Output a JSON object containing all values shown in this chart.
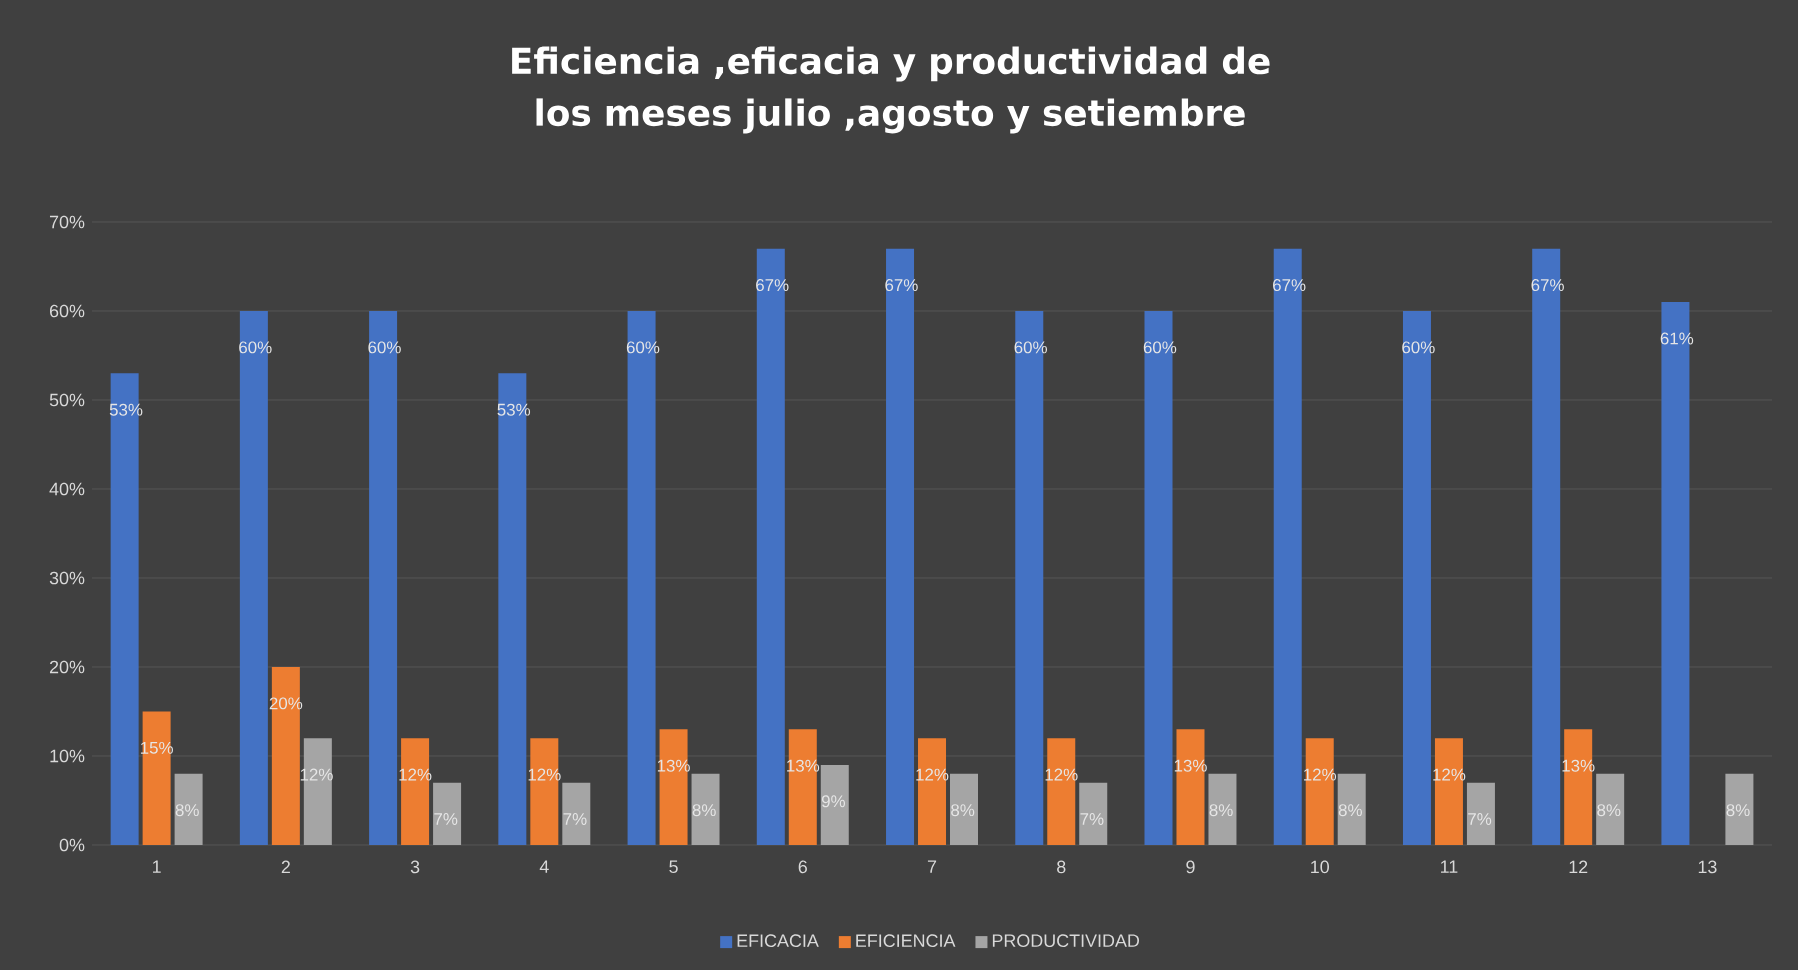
{
  "chart_data": {
    "type": "bar",
    "title": "Eficiencia ,eficacia y productividad de los meses julio ,agosto y setiembre",
    "categories": [
      "1",
      "2",
      "3",
      "4",
      "5",
      "6",
      "7",
      "8",
      "9",
      "10",
      "11",
      "12",
      "13"
    ],
    "series": [
      {
        "name": "EFICACIA",
        "color": "#4472c4",
        "values": [
          53,
          60,
          60,
          53,
          60,
          67,
          67,
          60,
          60,
          67,
          60,
          67,
          61
        ],
        "value_labels": [
          "53%",
          "60%",
          "60%",
          "53%",
          "60%",
          "67%",
          "67%",
          "60%",
          "60%",
          "67%",
          "60%",
          "67%",
          "61%"
        ]
      },
      {
        "name": "EFICIENCIA",
        "color": "#ed7d31",
        "values": [
          15,
          20,
          12,
          12,
          13,
          13,
          12,
          12,
          13,
          12,
          12,
          13,
          null
        ],
        "value_labels": [
          "15%",
          "20%",
          "12%",
          "12%",
          "13%",
          "13%",
          "12%",
          "12%",
          "13%",
          "12%",
          "12%",
          "13%",
          null
        ]
      },
      {
        "name": "PRODUCTIVIDAD",
        "color": "#a5a5a5",
        "values": [
          8,
          12,
          7,
          7,
          8,
          9,
          8,
          7,
          8,
          8,
          7,
          8,
          8
        ],
        "value_labels": [
          "8%",
          "12%",
          "7%",
          "7%",
          "8%",
          "9%",
          "8%",
          "7%",
          "8%",
          "8%",
          "7%",
          "8%",
          "8%"
        ]
      }
    ],
    "ylim": [
      0,
      70
    ],
    "yticks": [
      {
        "value": 0,
        "label": "0%"
      },
      {
        "value": 10,
        "label": "10%"
      },
      {
        "value": 20,
        "label": "20%"
      },
      {
        "value": 30,
        "label": "30%"
      },
      {
        "value": 40,
        "label": "40%"
      },
      {
        "value": 50,
        "label": "50%"
      },
      {
        "value": 60,
        "label": "60%"
      },
      {
        "value": 70,
        "label": "70%"
      }
    ],
    "grid": "y",
    "legend": "bottom"
  }
}
